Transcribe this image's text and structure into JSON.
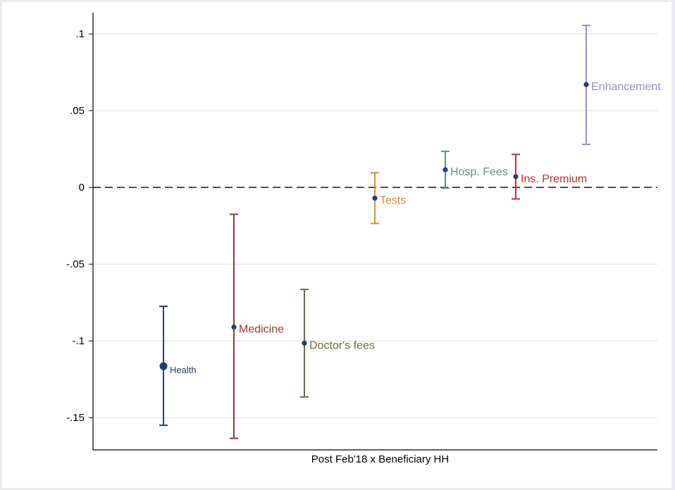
{
  "chart_data": {
    "type": "scatter",
    "subtype": "coefficient-plot",
    "title": "",
    "xlabel": "Post Feb'18 x Beneficiary HH",
    "ylabel": "",
    "ylim": [
      -0.171,
      0.112
    ],
    "yticks": [
      {
        "value": 0.1,
        "label": ".1"
      },
      {
        "value": 0.05,
        "label": ".05"
      },
      {
        "value": 0,
        "label": "0"
      },
      {
        "value": -0.05,
        "label": "-.05"
      },
      {
        "value": -0.1,
        "label": "-.1"
      },
      {
        "value": -0.15,
        "label": "-.15"
      }
    ],
    "grid": true,
    "reference_line": {
      "y": 0,
      "style": "dashed"
    },
    "series": [
      {
        "name": "Health",
        "estimate": -0.1165,
        "ci_low": -0.155,
        "ci_high": -0.0775,
        "color": "#1f3f6e",
        "marker": "large"
      },
      {
        "name": "Medicine",
        "estimate": -0.091,
        "ci_low": -0.1635,
        "ci_high": -0.0175,
        "color": "#8f3a31",
        "marker": "small"
      },
      {
        "name": "Doctor's fees",
        "estimate": -0.1015,
        "ci_low": -0.1365,
        "ci_high": -0.0665,
        "color": "#6b6b3f",
        "marker": "small"
      },
      {
        "name": "Tests",
        "estimate": -0.007,
        "ci_low": -0.0235,
        "ci_high": 0.0095,
        "color": "#e38b2c",
        "marker": "small"
      },
      {
        "name": "Hosp. Fees",
        "estimate": 0.0115,
        "ci_low": -0.0005,
        "ci_high": 0.0235,
        "color": "#708a88",
        "marker": "small"
      },
      {
        "name": "Ins. Premium",
        "estimate": 0.007,
        "ci_low": -0.0075,
        "ci_high": 0.0215,
        "color": "#c0302e",
        "marker": "small"
      },
      {
        "name": "Enhancement",
        "estimate": 0.067,
        "ci_low": 0.028,
        "ci_high": 0.1055,
        "color": "#9b8ac9",
        "marker": "small"
      }
    ],
    "point_color": "#1f3f6e"
  }
}
